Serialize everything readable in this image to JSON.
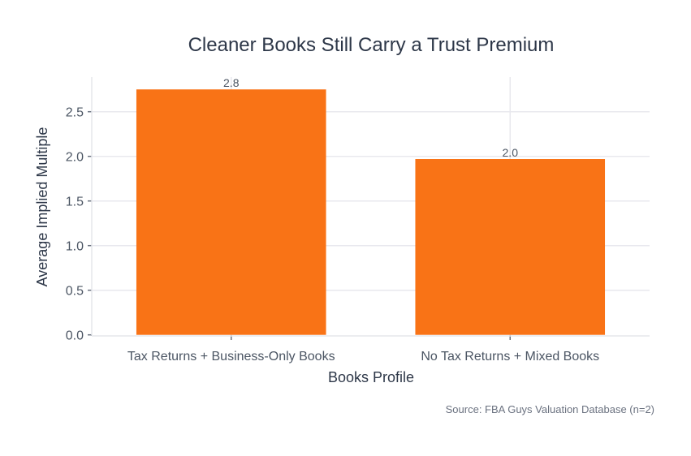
{
  "chart_data": {
    "type": "bar",
    "title": "Cleaner Books Still Carry a Trust Premium",
    "xlabel": "Books Profile",
    "ylabel": "Average Implied Multiple",
    "categories": [
      "Tax Returns + Business-Only Books",
      "No Tax Returns + Mixed Books"
    ],
    "values": [
      2.75,
      1.97
    ],
    "data_labels": [
      "2.8",
      "2.0"
    ],
    "ylim": [
      0,
      2.9
    ],
    "yticks": [
      0,
      0.5,
      1,
      1.5,
      2,
      2.5
    ],
    "ytick_labels": [
      "0.0",
      "0.5",
      "1.0",
      "1.5",
      "2.0",
      "2.5"
    ],
    "grid": true,
    "bar_color": "#f97316",
    "source": "Source: FBA Guys Valuation Database (n=2)"
  }
}
